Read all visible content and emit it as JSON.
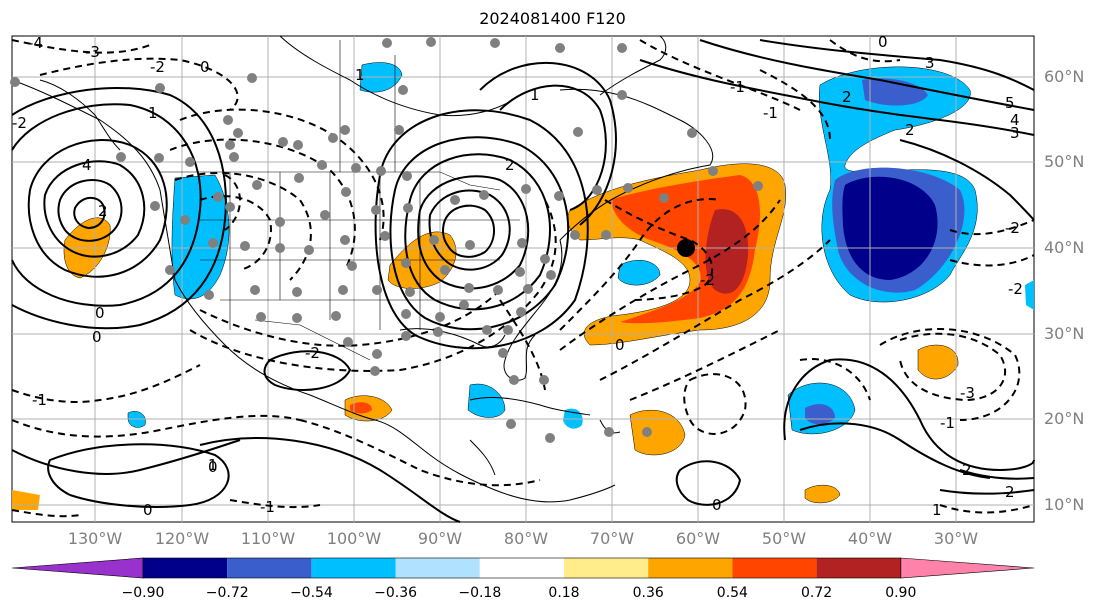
{
  "title": "2024081400 F120",
  "lat_labels": [
    "60°N",
    "50°N",
    "40°N",
    "30°N",
    "20°N",
    "10°N"
  ],
  "lon_labels": [
    "130°W",
    "120°W",
    "110°W",
    "100°W",
    "90°W",
    "80°W",
    "70°W",
    "60°W",
    "50°W",
    "40°W",
    "30°W"
  ],
  "colorbar": {
    "ticks": [
      "−0.90",
      "−0.72",
      "−0.54",
      "−0.36",
      "−0.18",
      "0.18",
      "0.36",
      "0.54",
      "0.72",
      "0.90"
    ],
    "colors": [
      "#9932cc",
      "#00008b",
      "#3a5fcd",
      "#00bfff",
      "#b0e2ff",
      "#ffffff",
      "#ffec8b",
      "#ffa500",
      "#ff4500",
      "#b22222",
      "#ff82ab"
    ]
  },
  "contour_labels": [
    "-4",
    "-3",
    "-2",
    "-1",
    "0",
    "0",
    "0",
    "1",
    "1",
    "2",
    "2",
    "3",
    "4",
    "5",
    "-2",
    "-2",
    "0",
    "1",
    "2",
    "-1",
    "-1",
    "0",
    "-1",
    "0",
    "-2",
    "-3",
    "-2",
    "2",
    "1",
    "0",
    "-1",
    "2"
  ],
  "storm_marker": {
    "lat": 40,
    "lon": "60°W"
  }
}
